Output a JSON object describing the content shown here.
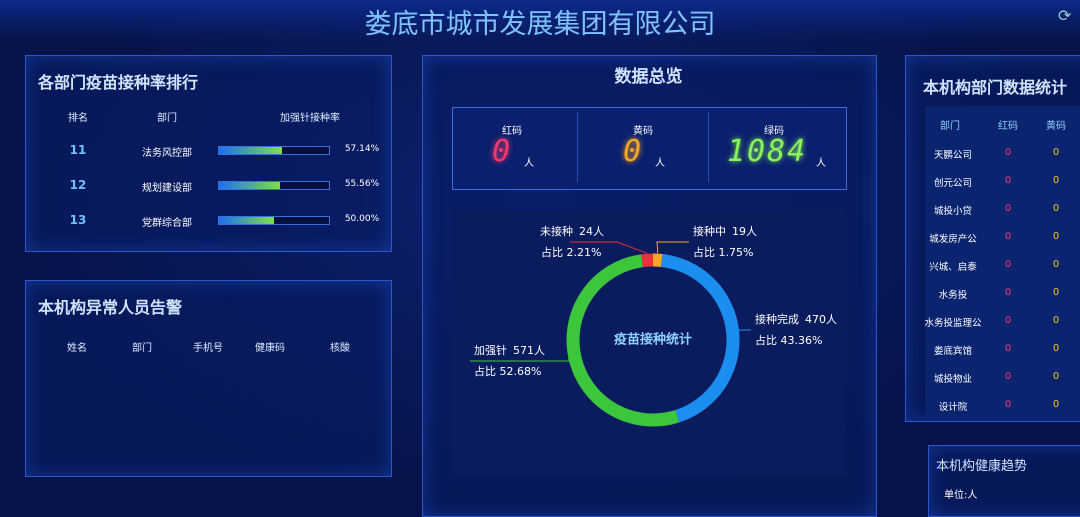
{
  "header": {
    "title": "娄底市城市发展集团有限公司"
  },
  "ranking": {
    "title": "各部门疫苗接种率排行",
    "columns": [
      "排名",
      "部门",
      "加强针接种率"
    ],
    "rows": [
      {
        "rank": 11,
        "dept": "法务风控部",
        "rate": 57.14,
        "rate_label": "57.14%"
      },
      {
        "rank": 12,
        "dept": "规划建设部",
        "rate": 55.56,
        "rate_label": "55.56%"
      },
      {
        "rank": 13,
        "dept": "党群综合部",
        "rate": 50.0,
        "rate_label": "50.00%"
      }
    ]
  },
  "alerts": {
    "title": "本机构异常人员告警",
    "columns": [
      "姓名",
      "部门",
      "手机号",
      "健康码",
      "核酸"
    ]
  },
  "overview": {
    "title": "数据总览",
    "codes": [
      {
        "label": "红码",
        "value": 0,
        "unit": "人",
        "color": "#f0386e"
      },
      {
        "label": "黄码",
        "value": 0,
        "unit": "人",
        "color": "#f5a623"
      },
      {
        "label": "绿码",
        "value": 1084,
        "unit": "人",
        "color": "#8af25a"
      }
    ]
  },
  "donut": {
    "title": "疫苗接种统计",
    "segments": [
      {
        "name": "未接种",
        "count": 24,
        "count_label": "24人",
        "share": 2.21,
        "share_label": "占比 2.21%",
        "color": "#e8323c"
      },
      {
        "name": "接种中",
        "count": 19,
        "count_label": "19人",
        "share": 1.75,
        "share_label": "占比 1.75%",
        "color": "#f5a623"
      },
      {
        "name": "接种完成",
        "count": 470,
        "count_label": "470人",
        "share": 43.36,
        "share_label": "占比 43.36%",
        "color": "#1b8ef0"
      },
      {
        "name": "加强针",
        "count": 571,
        "count_label": "571人",
        "share": 52.68,
        "share_label": "占比 52.68%",
        "color": "#3cc63c"
      }
    ]
  },
  "departments": {
    "title": "本机构部门数据统计",
    "columns": [
      "部门",
      "红码",
      "黄码"
    ],
    "rows": [
      {
        "name": "天鹏公司",
        "red": 0,
        "yellow": 0
      },
      {
        "name": "创元公司",
        "red": 0,
        "yellow": 0
      },
      {
        "name": "城投小贷",
        "red": 0,
        "yellow": 0
      },
      {
        "name": "城发房产公",
        "red": 0,
        "yellow": 0
      },
      {
        "name": "兴城、启泰",
        "red": 0,
        "yellow": 0
      },
      {
        "name": "水务投",
        "red": 0,
        "yellow": 0
      },
      {
        "name": "水务投监理公",
        "red": 0,
        "yellow": 0
      },
      {
        "name": "娄底宾馆",
        "red": 0,
        "yellow": 0
      },
      {
        "name": "城投物业",
        "red": 0,
        "yellow": 0
      },
      {
        "name": "设计院",
        "red": 0,
        "yellow": 0
      }
    ]
  },
  "health": {
    "title": "本机构健康趋势",
    "unit": "单位:人"
  }
}
